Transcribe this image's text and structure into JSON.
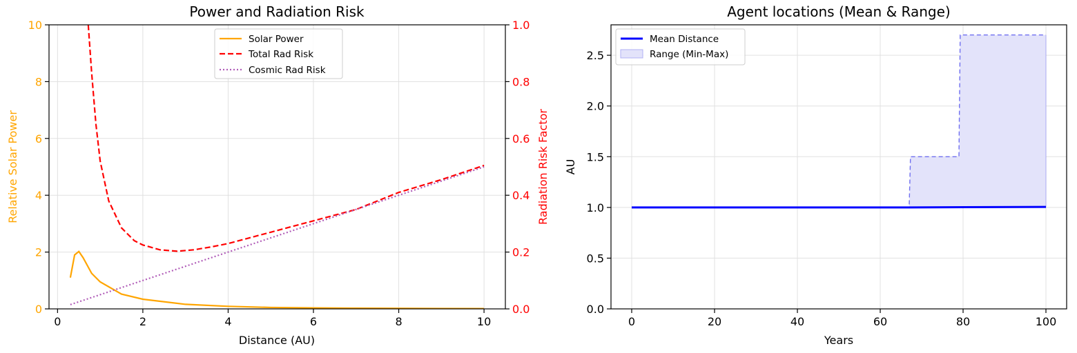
{
  "chart_data": [
    {
      "type": "line",
      "title": "Power and Radiation Risk",
      "xlabel": "Distance (AU)",
      "ylabel": "Relative Solar Power",
      "y2label": "Radiation Risk Factor",
      "xlim": [
        -0.2,
        10.5
      ],
      "ylim": [
        0,
        10
      ],
      "y2lim": [
        0,
        1.0
      ],
      "xticks": [
        "0",
        "2",
        "4",
        "6",
        "8",
        "10"
      ],
      "yticks": [
        "0",
        "2",
        "4",
        "6",
        "8",
        "10"
      ],
      "y2ticks": [
        "0.0",
        "0.2",
        "0.4",
        "0.6",
        "0.8",
        "1.0"
      ],
      "grid": true,
      "legend_position": "top-center",
      "colors": {
        "left_axis": "#ffa500",
        "right_axis": "#ff0000",
        "solar": "#ffa500",
        "total": "#ff0000",
        "cosmic": "#b05cb8"
      },
      "series": [
        {
          "name": "Solar Power",
          "axis": "left",
          "style": "solid",
          "x": [
            0.3,
            0.4,
            0.5,
            0.6,
            0.8,
            1.0,
            1.5,
            2.0,
            3.0,
            4.0,
            5.0,
            6.0,
            7.0,
            8.0,
            9.0,
            10.0
          ],
          "y": [
            1.1,
            1.9,
            2.02,
            1.8,
            1.25,
            0.95,
            0.52,
            0.34,
            0.16,
            0.09,
            0.05,
            0.035,
            0.025,
            0.018,
            0.013,
            0.01
          ]
        },
        {
          "name": "Total Rad Risk",
          "axis": "right",
          "style": "dashed",
          "x": [
            0.72,
            0.8,
            0.9,
            1.0,
            1.2,
            1.5,
            1.8,
            2.0,
            2.4,
            2.8,
            3.2,
            3.6,
            4.0,
            5.0,
            6.0,
            7.0,
            8.0,
            9.0,
            10.0
          ],
          "y": [
            1.0,
            0.83,
            0.65,
            0.52,
            0.38,
            0.285,
            0.24,
            0.225,
            0.208,
            0.203,
            0.208,
            0.218,
            0.23,
            0.27,
            0.31,
            0.35,
            0.41,
            0.455,
            0.505
          ]
        },
        {
          "name": "Cosmic Rad Risk",
          "axis": "right",
          "style": "dotted",
          "x": [
            0.3,
            10.0
          ],
          "y": [
            0.015,
            0.5
          ]
        }
      ]
    },
    {
      "type": "area",
      "title": "Agent locations (Mean & Range)",
      "xlabel": "Years",
      "ylabel": "AU",
      "xlim": [
        -5,
        105
      ],
      "ylim": [
        0.0,
        2.8
      ],
      "xticks": [
        "0",
        "20",
        "40",
        "60",
        "80",
        "100"
      ],
      "yticks": [
        "0.0",
        "0.5",
        "1.0",
        "1.5",
        "2.0",
        "2.5"
      ],
      "grid": true,
      "legend_position": "top-left",
      "colors": {
        "mean": "#0000ff",
        "range_fill": "#e3e3fa",
        "range_edge": "#6f6ff0"
      },
      "series": [
        {
          "name": "Mean Distance",
          "x": [
            0,
            67,
            100
          ],
          "y": [
            1.0,
            1.0,
            1.005
          ]
        },
        {
          "name": "Range (Min-Max)",
          "x": [
            67,
            67.3,
            79,
            79.3,
            100
          ],
          "ymin": [
            1.0,
            1.0,
            1.0,
            1.0,
            1.0
          ],
          "ymax": [
            1.03,
            1.5,
            1.5,
            2.7,
            2.7
          ]
        }
      ]
    }
  ]
}
